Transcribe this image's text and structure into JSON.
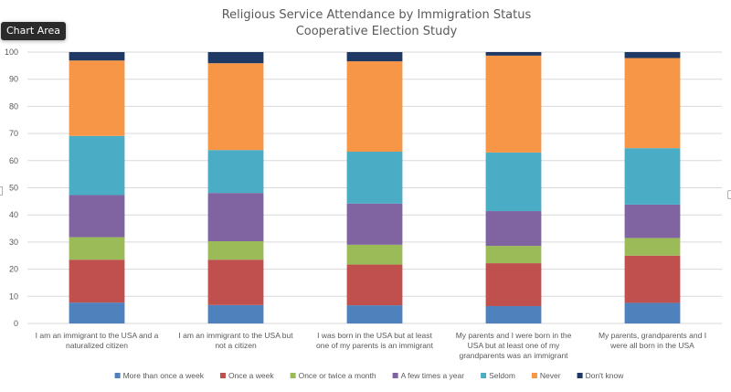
{
  "tooltip": {
    "label": "Chart Area"
  },
  "chart_data": {
    "type": "bar",
    "stacked": true,
    "title": "Religious Service Attendance by Immigration Status",
    "subtitle": "Cooperative Election Study",
    "xlabel": "",
    "ylabel": "",
    "ylim": [
      0,
      100
    ],
    "yticks": [
      "0",
      "10",
      "20",
      "30",
      "40",
      "50",
      "60",
      "70",
      "80",
      "90",
      "100"
    ],
    "grid": true,
    "legend_position": "bottom",
    "categories": [
      [
        "I am an immigrant to the USA and a",
        "naturalized citizen"
      ],
      [
        "I am an immigrant to the USA but",
        "not a citizen"
      ],
      [
        "I was born in the USA but at least",
        "one of my parents is an immigrant"
      ],
      [
        "My parents and I were born in the",
        "USA but at least one of my",
        "grandparents was an immigrant"
      ],
      [
        "My parents, grandparents and I",
        "were all born in the USA"
      ]
    ],
    "series": [
      {
        "name": "More than once a week",
        "color": "#4f81bd",
        "values": [
          7.7,
          6.8,
          6.7,
          6.4,
          7.6
        ]
      },
      {
        "name": "Once a week",
        "color": "#c0504d",
        "values": [
          15.8,
          16.7,
          15.0,
          15.8,
          17.4
        ]
      },
      {
        "name": "Once or twice a month",
        "color": "#9bbb59",
        "values": [
          8.3,
          6.8,
          7.3,
          6.4,
          6.5
        ]
      },
      {
        "name": "A few times a year",
        "color": "#8064a2",
        "values": [
          15.5,
          17.8,
          15.2,
          12.8,
          12.3
        ]
      },
      {
        "name": "Seldom",
        "color": "#4bacc6",
        "values": [
          21.8,
          15.8,
          19.1,
          21.6,
          20.8
        ]
      },
      {
        "name": "Never",
        "color": "#f79646",
        "values": [
          27.8,
          32.0,
          33.3,
          35.7,
          33.2
        ]
      },
      {
        "name": "Don't know",
        "color": "#1f3864",
        "values": [
          3.1,
          4.1,
          3.4,
          1.3,
          2.2
        ]
      }
    ]
  }
}
